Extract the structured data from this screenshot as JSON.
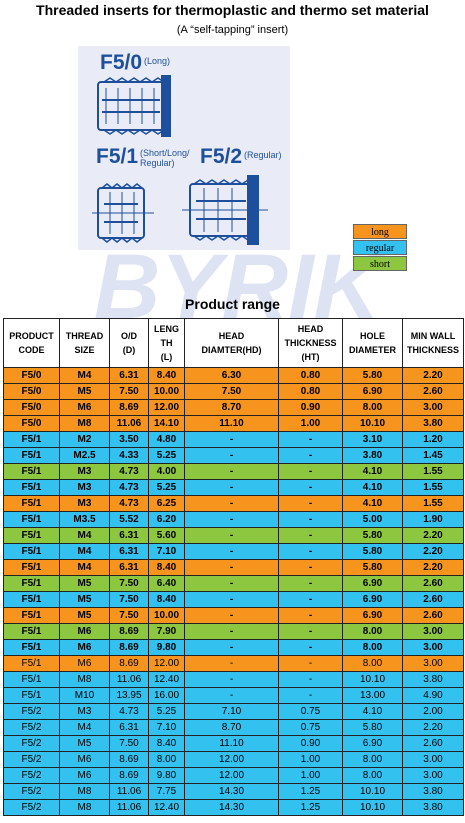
{
  "header": {
    "title": "Threaded inserts for thermoplastic and thermo set material",
    "subtitle": "(A “self-tapping” insert)"
  },
  "diagram": {
    "f50_label": "F5/0",
    "f50_sub": "(Long)",
    "f51_label": "F5/1",
    "f51_sub_line1": "(Short/Long/",
    "f51_sub_line2": "Regular)",
    "f52_label": "F5/2",
    "f52_sub": "(Regular)",
    "color": "#1d4f9c"
  },
  "legend": [
    {
      "label": "long",
      "color": "#f7941d"
    },
    {
      "label": "regular",
      "color": "#33c1f0"
    },
    {
      "label": "short",
      "color": "#8dc63f"
    }
  ],
  "watermark": {
    "text": "BYRIK",
    "color": "#c9d2ec"
  },
  "range_title": "Product range",
  "table": {
    "headers": [
      [
        "PRODUCT",
        "CODE"
      ],
      [
        "THREAD",
        "SIZE"
      ],
      [
        "O/D",
        "(D)"
      ],
      [
        "LENG",
        "TH",
        "(L)"
      ],
      [
        "HEAD",
        "DIAMTER(HD)"
      ],
      [
        "HEAD",
        "THICKNESS",
        "(HT)"
      ],
      [
        "HOLE",
        "DIAMETER"
      ],
      [
        "MIN WALL",
        "THICKNESS"
      ]
    ],
    "rows": [
      {
        "cells": [
          "F5/0",
          "M4",
          "6.31",
          "8.40",
          "6.30",
          "0.80",
          "5.80",
          "2.20"
        ],
        "color": "#f7941d",
        "bold": true
      },
      {
        "cells": [
          "F5/0",
          "M5",
          "7.50",
          "10.00",
          "7.50",
          "0.80",
          "6.90",
          "2.60"
        ],
        "color": "#f7941d",
        "bold": true
      },
      {
        "cells": [
          "F5/0",
          "M6",
          "8.69",
          "12.00",
          "8.70",
          "0.90",
          "8.00",
          "3.00"
        ],
        "color": "#f7941d",
        "bold": true
      },
      {
        "cells": [
          "F5/0",
          "M8",
          "11.06",
          "14.10",
          "11.10",
          "1.00",
          "10.10",
          "3.80"
        ],
        "color": "#f7941d",
        "bold": true
      },
      {
        "cells": [
          "F5/1",
          "M2",
          "3.50",
          "4.80",
          "-",
          "-",
          "3.10",
          "1.20"
        ],
        "color": "#33c1f0",
        "bold": true
      },
      {
        "cells": [
          "F5/1",
          "M2.5",
          "4.33",
          "5.25",
          "-",
          "-",
          "3.80",
          "1.45"
        ],
        "color": "#33c1f0",
        "bold": true
      },
      {
        "cells": [
          "F5/1",
          "M3",
          "4.73",
          "4.00",
          "-",
          "-",
          "4.10",
          "1.55"
        ],
        "color": "#8dc63f",
        "bold": true
      },
      {
        "cells": [
          "F5/1",
          "M3",
          "4.73",
          "5.25",
          "-",
          "-",
          "4.10",
          "1.55"
        ],
        "color": "#33c1f0",
        "bold": true
      },
      {
        "cells": [
          "F5/1",
          "M3",
          "4.73",
          "6.25",
          "-",
          "-",
          "4.10",
          "1.55"
        ],
        "color": "#f7941d",
        "bold": true
      },
      {
        "cells": [
          "F5/1",
          "M3.5",
          "5.52",
          "6.20",
          "-",
          "-",
          "5.00",
          "1.90"
        ],
        "color": "#33c1f0",
        "bold": true
      },
      {
        "cells": [
          "F5/1",
          "M4",
          "6.31",
          "5.60",
          "-",
          "-",
          "5.80",
          "2.20"
        ],
        "color": "#8dc63f",
        "bold": true
      },
      {
        "cells": [
          "F5/1",
          "M4",
          "6.31",
          "7.10",
          "-",
          "-",
          "5.80",
          "2.20"
        ],
        "color": "#33c1f0",
        "bold": true
      },
      {
        "cells": [
          "F5/1",
          "M4",
          "6.31",
          "8.40",
          "-",
          "-",
          "5.80",
          "2.20"
        ],
        "color": "#f7941d",
        "bold": true
      },
      {
        "cells": [
          "F5/1",
          "M5",
          "7.50",
          "6.40",
          "-",
          "-",
          "6.90",
          "2.60"
        ],
        "color": "#8dc63f",
        "bold": true
      },
      {
        "cells": [
          "F5/1",
          "M5",
          "7.50",
          "8.40",
          "-",
          "-",
          "6.90",
          "2.60"
        ],
        "color": "#33c1f0",
        "bold": true
      },
      {
        "cells": [
          "F5/1",
          "M5",
          "7.50",
          "10.00",
          "-",
          "-",
          "6.90",
          "2.60"
        ],
        "color": "#f7941d",
        "bold": true
      },
      {
        "cells": [
          "F5/1",
          "M6",
          "8.69",
          "7.90",
          "-",
          "-",
          "8.00",
          "3.00"
        ],
        "color": "#8dc63f",
        "bold": true
      },
      {
        "cells": [
          "F5/1",
          "M6",
          "8.69",
          "9.80",
          "-",
          "-",
          "8.00",
          "3.00"
        ],
        "color": "#33c1f0",
        "bold": true
      },
      {
        "cells": [
          "F5/1",
          "M6",
          "8.69",
          "12.00",
          "-",
          "-",
          "8.00",
          "3.00"
        ],
        "color": "#f7941d",
        "bold": false
      },
      {
        "cells": [
          "F5/1",
          "M8",
          "11.06",
          "12.40",
          "-",
          "-",
          "10.10",
          "3.80"
        ],
        "color": "#33c1f0",
        "bold": false
      },
      {
        "cells": [
          "F5/1",
          "M10",
          "13.95",
          "16.00",
          "-",
          "-",
          "13.00",
          "4.90"
        ],
        "color": "#33c1f0",
        "bold": false
      },
      {
        "cells": [
          "F5/2",
          "M3",
          "4.73",
          "5.25",
          "7.10",
          "0.75",
          "4.10",
          "2.00"
        ],
        "color": "#33c1f0",
        "bold": false
      },
      {
        "cells": [
          "F5/2",
          "M4",
          "6.31",
          "7.10",
          "8.70",
          "0.75",
          "5.80",
          "2.20"
        ],
        "color": "#33c1f0",
        "bold": false
      },
      {
        "cells": [
          "F5/2",
          "M5",
          "7.50",
          "8.40",
          "11.10",
          "0.90",
          "6.90",
          "2.60"
        ],
        "color": "#33c1f0",
        "bold": false
      },
      {
        "cells": [
          "F5/2",
          "M6",
          "8.69",
          "8.00",
          "12.00",
          "1.00",
          "8.00",
          "3.00"
        ],
        "color": "#33c1f0",
        "bold": false
      },
      {
        "cells": [
          "F5/2",
          "M6",
          "8.69",
          "9.80",
          "12.00",
          "1.00",
          "8.00",
          "3.00"
        ],
        "color": "#33c1f0",
        "bold": false
      },
      {
        "cells": [
          "F5/2",
          "M8",
          "11.06",
          "7.75",
          "14.30",
          "1.25",
          "10.10",
          "3.80"
        ],
        "color": "#33c1f0",
        "bold": false
      },
      {
        "cells": [
          "F5/2",
          "M8",
          "11.06",
          "12.40",
          "14.30",
          "1.25",
          "10.10",
          "3.80"
        ],
        "color": "#33c1f0",
        "bold": false
      }
    ]
  }
}
